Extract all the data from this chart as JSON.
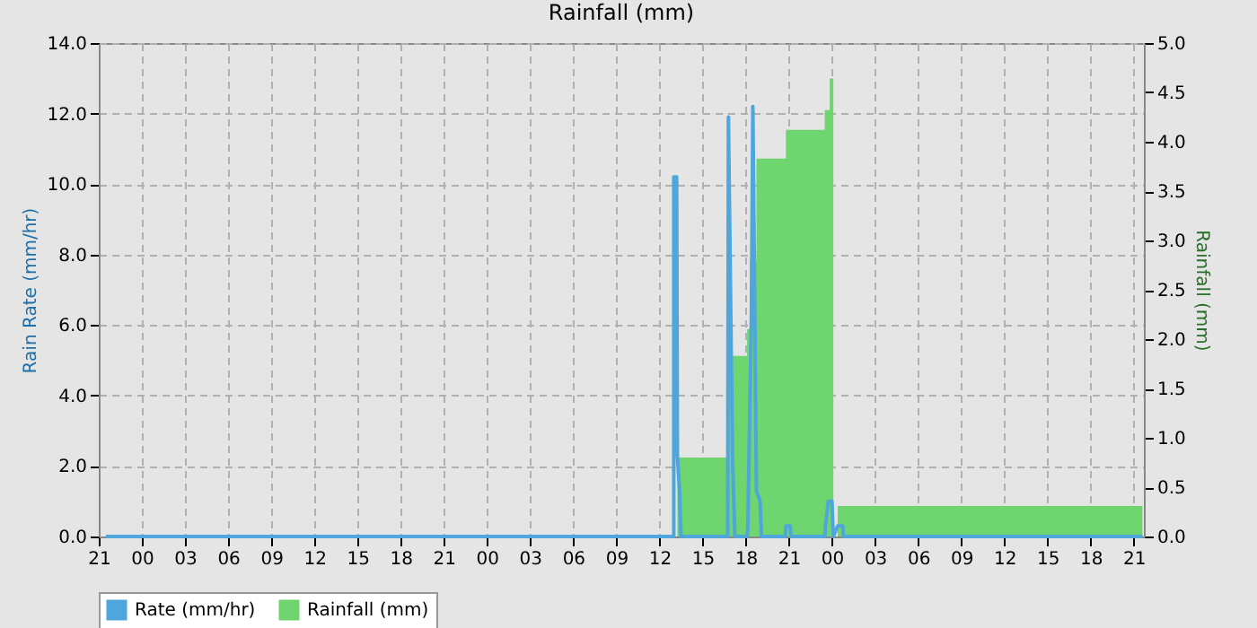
{
  "chart_data": {
    "type": "line",
    "title": "Rainfall (mm)",
    "ylabel": "Rain Rate (mm/hr)",
    "y2label": "Rainfall (mm)",
    "xlim": [
      "2000-01-01T21:00",
      "2000-01-04T21:42"
    ],
    "xticks": [
      {
        "value": "2000-01-01T21:00",
        "label": "21"
      },
      {
        "value": "2000-01-02T00:00",
        "label": "00"
      },
      {
        "value": "2000-01-02T03:00",
        "label": "03"
      },
      {
        "value": "2000-01-02T06:00",
        "label": "06"
      },
      {
        "value": "2000-01-02T09:00",
        "label": "09"
      },
      {
        "value": "2000-01-02T12:00",
        "label": "12"
      },
      {
        "value": "2000-01-02T15:00",
        "label": "15"
      },
      {
        "value": "2000-01-02T18:00",
        "label": "18"
      },
      {
        "value": "2000-01-02T21:00",
        "label": "21"
      },
      {
        "value": "2000-01-03T00:00",
        "label": "00"
      },
      {
        "value": "2000-01-03T03:00",
        "label": "03"
      },
      {
        "value": "2000-01-03T06:00",
        "label": "06"
      },
      {
        "value": "2000-01-03T09:00",
        "label": "09"
      },
      {
        "value": "2000-01-03T12:00",
        "label": "12"
      },
      {
        "value": "2000-01-03T15:00",
        "label": "15"
      },
      {
        "value": "2000-01-03T18:00",
        "label": "18"
      },
      {
        "value": "2000-01-03T21:00",
        "label": "21"
      },
      {
        "value": "2000-01-04T00:00",
        "label": "00"
      },
      {
        "value": "2000-01-04T03:00",
        "label": "03"
      },
      {
        "value": "2000-01-04T06:00",
        "label": "06"
      },
      {
        "value": "2000-01-04T09:00",
        "label": "09"
      },
      {
        "value": "2000-01-04T12:00",
        "label": "12"
      },
      {
        "value": "2000-01-04T15:00",
        "label": "15"
      },
      {
        "value": "2000-01-04T18:00",
        "label": "18"
      },
      {
        "value": "2000-01-04T21:00",
        "label": "21"
      }
    ],
    "ylim": [
      0,
      14
    ],
    "yticks": [
      {
        "value": 0,
        "label": "0.0"
      },
      {
        "value": 2,
        "label": "2.0"
      },
      {
        "value": 4,
        "label": "4.0"
      },
      {
        "value": 6,
        "label": "6.0"
      },
      {
        "value": 8,
        "label": "8.0"
      },
      {
        "value": 10,
        "label": "10.0"
      },
      {
        "value": 12,
        "label": "12.0"
      },
      {
        "value": 14,
        "label": "14.0"
      }
    ],
    "y2lim": [
      0,
      5
    ],
    "y2ticks": [
      {
        "value": 0,
        "label": "0.0"
      },
      {
        "value": 0.5,
        "label": "0.5"
      },
      {
        "value": 1,
        "label": "1.0"
      },
      {
        "value": 1.5,
        "label": "1.5"
      },
      {
        "value": 2,
        "label": "2.0"
      },
      {
        "value": 2.5,
        "label": "2.5"
      },
      {
        "value": 3,
        "label": "3.0"
      },
      {
        "value": 3.5,
        "label": "3.5"
      },
      {
        "value": 4,
        "label": "4.0"
      },
      {
        "value": 4.5,
        "label": "4.5"
      },
      {
        "value": 5,
        "label": "5.0"
      }
    ],
    "grid": true,
    "legend": "bottom",
    "series": [
      {
        "name": "Rate (mm/hr)",
        "color": "#4ea6dc",
        "x": [
          "2000-01-01T21:30",
          "2000-01-03T13:00",
          "2000-01-03T13:00",
          "2000-01-03T13:12",
          "2000-01-03T13:15",
          "2000-01-03T13:24",
          "2000-01-03T13:30",
          "2000-01-03T16:45",
          "2000-01-03T16:48",
          "2000-01-03T17:00",
          "2000-01-03T17:06",
          "2000-01-03T17:15",
          "2000-01-03T18:06",
          "2000-01-03T18:09",
          "2000-01-03T18:24",
          "2000-01-03T18:30",
          "2000-01-03T18:45",
          "2000-01-03T19:00",
          "2000-01-03T19:06",
          "2000-01-03T20:45",
          "2000-01-03T20:48",
          "2000-01-03T21:06",
          "2000-01-03T21:09",
          "2000-01-03T23:30",
          "2000-01-03T23:33",
          "2000-01-03T23:45",
          "2000-01-04T00:00",
          "2000-01-04T00:06",
          "2000-01-04T00:24",
          "2000-01-04T00:45",
          "2000-01-04T00:48",
          "2000-01-04T21:36"
        ],
        "values": [
          0,
          0,
          10.2,
          10.2,
          2.3,
          1.3,
          0,
          0,
          11.9,
          5.1,
          2.0,
          0,
          0,
          0.25,
          6.3,
          12.2,
          1.3,
          1.0,
          0,
          0,
          0.3,
          0.3,
          0,
          0,
          0.3,
          1.0,
          1.0,
          0,
          0.3,
          0.3,
          0,
          0
        ]
      },
      {
        "name": "Rainfall (mm)",
        "color": "#6fd56f",
        "type": "area",
        "axis": "y2",
        "x": [
          "2000-01-01T21:30",
          "2000-01-03T13:15",
          "2000-01-03T16:45",
          "2000-01-03T18:06",
          "2000-01-03T18:18",
          "2000-01-03T18:45",
          "2000-01-03T20:48",
          "2000-01-03T23:30",
          "2000-01-03T23:51",
          "2000-01-04T00:06",
          "2000-01-04T00:24",
          "2000-01-04T21:36"
        ],
        "values": [
          0,
          0.8,
          1.83,
          2.1,
          2.8,
          3.83,
          4.12,
          4.32,
          4.64,
          0,
          0.31,
          0.31
        ]
      }
    ]
  }
}
